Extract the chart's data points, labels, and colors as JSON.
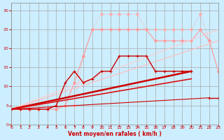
{
  "background_color": "#cceeff",
  "grid_color": "#aaaaaa",
  "xlabel": "Vent moyen/en rafales ( km/h )",
  "xlabel_color": "#cc0000",
  "tick_color": "#cc0000",
  "xlim": [
    0,
    23
  ],
  "ylim": [
    0,
    32
  ],
  "yticks": [
    0,
    5,
    10,
    15,
    20,
    25,
    30
  ],
  "xticks": [
    0,
    1,
    2,
    3,
    4,
    5,
    6,
    7,
    8,
    9,
    10,
    11,
    12,
    13,
    14,
    15,
    16,
    17,
    18,
    19,
    20,
    21,
    22,
    23
  ],
  "series": [
    {
      "x": [
        0,
        1,
        2,
        3,
        4,
        5,
        6,
        7,
        8,
        9,
        10,
        11,
        12,
        13,
        14,
        15,
        16,
        17,
        18,
        19,
        20,
        21,
        22,
        23
      ],
      "y": [
        4,
        4,
        4,
        4,
        4,
        4,
        5,
        5,
        18,
        25,
        29,
        29,
        29,
        29,
        29,
        25,
        25,
        25,
        25,
        25,
        25,
        29,
        22,
        14
      ],
      "color": "#ffaaaa",
      "marker": "D",
      "markersize": 2.0,
      "linewidth": 0.8,
      "linestyle": ":"
    },
    {
      "x": [
        0,
        1,
        2,
        3,
        4,
        5,
        6,
        7,
        8,
        9,
        10,
        11,
        12,
        13,
        14,
        15,
        16,
        17,
        18,
        19,
        20,
        21,
        22,
        23
      ],
      "y": [
        4,
        4,
        4,
        4,
        4,
        4,
        5,
        11,
        18,
        25,
        25,
        25,
        25,
        25,
        25,
        25,
        22,
        22,
        22,
        22,
        22,
        25,
        22,
        14
      ],
      "color": "#ff9999",
      "marker": "D",
      "markersize": 2.0,
      "linewidth": 0.8,
      "linestyle": "-"
    },
    {
      "x": [
        0,
        23
      ],
      "y": [
        4,
        22
      ],
      "color": "#ffbbbb",
      "marker": null,
      "markersize": 0,
      "linewidth": 0.8,
      "linestyle": "-"
    },
    {
      "x": [
        0,
        23
      ],
      "y": [
        4,
        25
      ],
      "color": "#ffcccc",
      "marker": null,
      "markersize": 0,
      "linewidth": 0.8,
      "linestyle": "-"
    },
    {
      "x": [
        0,
        1,
        2,
        3,
        4,
        5,
        6,
        7,
        8,
        9,
        10,
        11,
        12,
        13,
        14,
        15,
        16,
        17,
        18,
        19,
        20,
        21,
        22,
        23
      ],
      "y": [
        4,
        4,
        4,
        4,
        4,
        5,
        11,
        14,
        11,
        12,
        14,
        14,
        18,
        18,
        18,
        18,
        14,
        14,
        14,
        14,
        14,
        null,
        7,
        7
      ],
      "color": "#cc0000",
      "marker": "+",
      "markersize": 3.5,
      "linewidth": 1.0,
      "linestyle": "-"
    },
    {
      "x": [
        0,
        20
      ],
      "y": [
        4,
        14
      ],
      "color": "#cc0000",
      "marker": null,
      "markersize": 0,
      "linewidth": 1.8,
      "linestyle": "-"
    },
    {
      "x": [
        0,
        20
      ],
      "y": [
        4,
        12
      ],
      "color": "#dd1111",
      "marker": null,
      "markersize": 0,
      "linewidth": 1.2,
      "linestyle": "-"
    },
    {
      "x": [
        0,
        22
      ],
      "y": [
        4,
        7
      ],
      "color": "#cc0000",
      "marker": null,
      "markersize": 0,
      "linewidth": 0.8,
      "linestyle": "-"
    }
  ]
}
